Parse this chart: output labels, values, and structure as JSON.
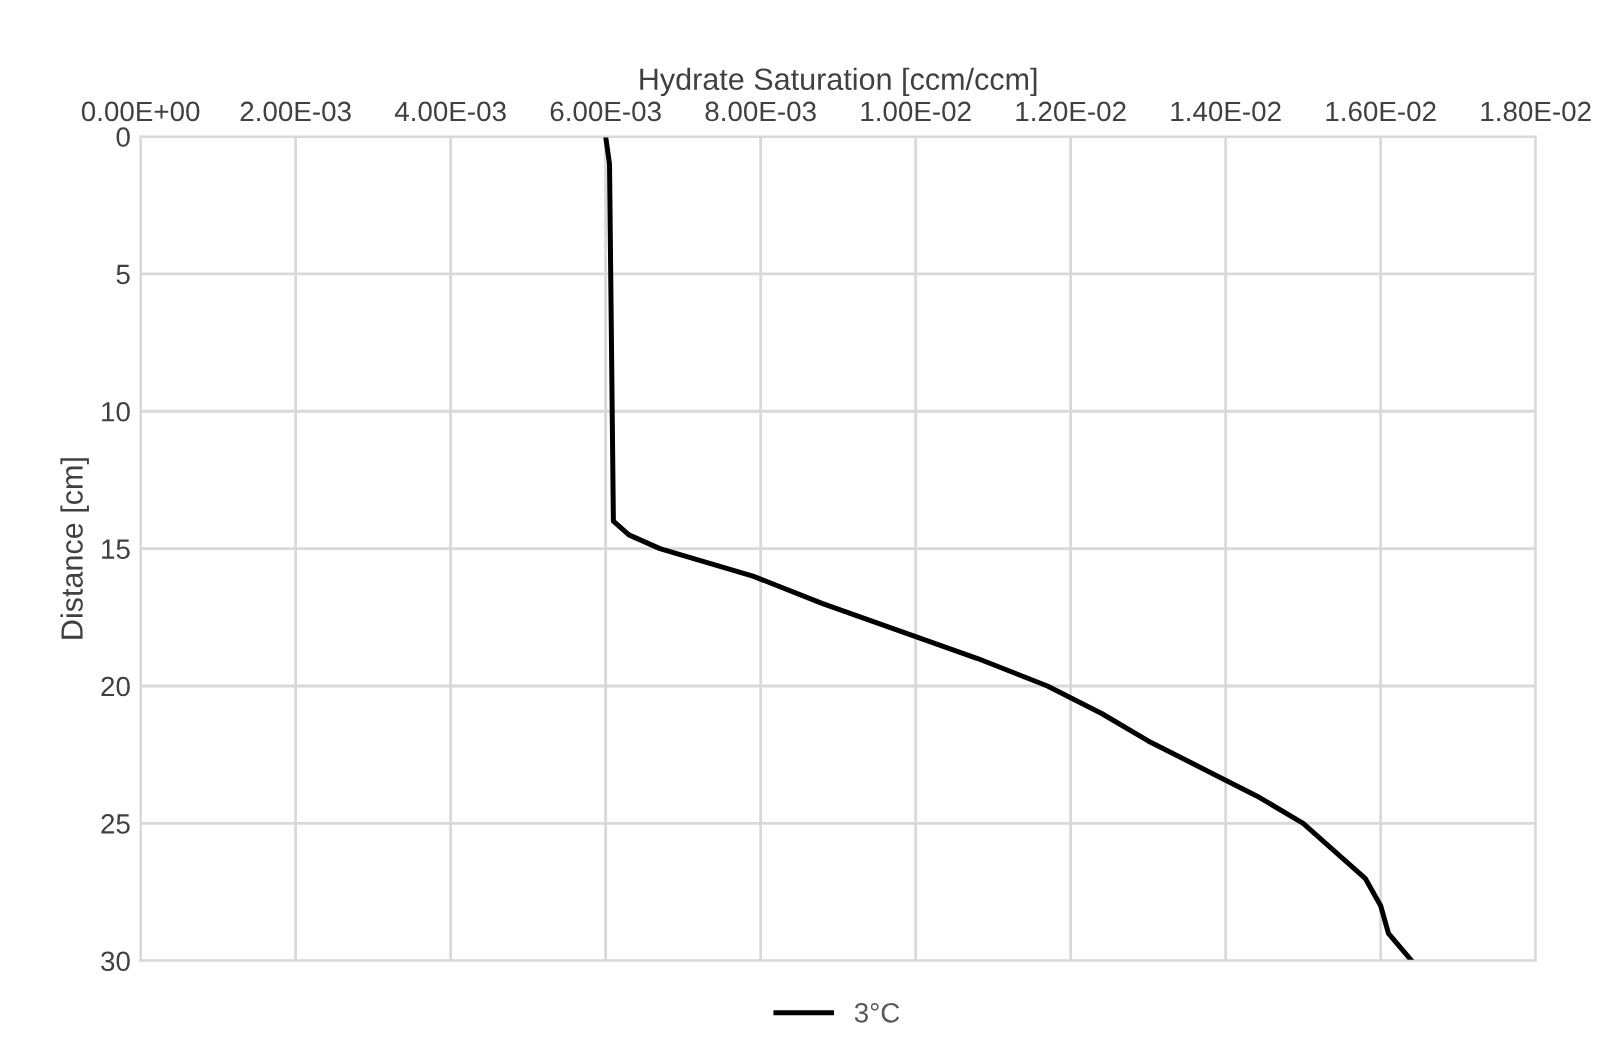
{
  "chart_data": {
    "type": "line",
    "xlabel": "Hydrate Saturation [ccm/ccm]",
    "ylabel": "Distance [cm]",
    "xlim": [
      0,
      0.018
    ],
    "xticks": [
      {
        "value": 0,
        "label": "0.00E+00"
      },
      {
        "value": 0.002,
        "label": "2.00E-03"
      },
      {
        "value": 0.004,
        "label": "4.00E-03"
      },
      {
        "value": 0.006,
        "label": "6.00E-03"
      },
      {
        "value": 0.008,
        "label": "8.00E-03"
      },
      {
        "value": 0.01,
        "label": "1.00E-02"
      },
      {
        "value": 0.012,
        "label": "1.20E-02"
      },
      {
        "value": 0.014,
        "label": "1.40E-02"
      },
      {
        "value": 0.016,
        "label": "1.60E-02"
      },
      {
        "value": 0.018,
        "label": "1.80E-02"
      }
    ],
    "ylim": [
      30,
      0
    ],
    "yticks": [
      0,
      5,
      10,
      15,
      20,
      25,
      30
    ],
    "grid": true,
    "legend": "bottom",
    "marker": "none",
    "line_style": "solid",
    "series": [
      {
        "name": "3°C",
        "color": "#000000",
        "x": [
          0.006,
          0.00605,
          0.0061,
          0.0063,
          0.0067,
          0.0079,
          0.0088,
          0.0098,
          0.0108,
          0.0117,
          0.0124,
          0.013,
          0.0137,
          0.0144,
          0.015,
          0.0154,
          0.0158,
          0.016,
          0.0161,
          0.0164
        ],
        "values": [
          0,
          1,
          14,
          14.5,
          15,
          16,
          17,
          18,
          19,
          20,
          21,
          22,
          23,
          24,
          25,
          26,
          27,
          28,
          29,
          30
        ]
      }
    ]
  }
}
